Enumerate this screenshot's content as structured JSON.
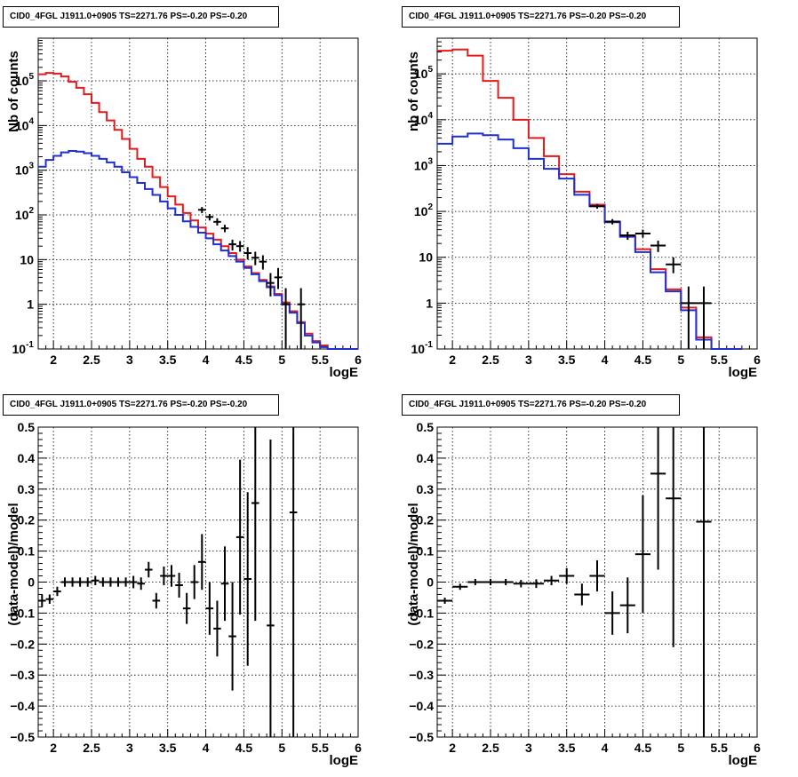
{
  "panels": [
    {
      "title": "CID0_4FGL J1911.0+0905 TS=2271.76 PS=-0.20 PS=-0.20"
    },
    {
      "title": "CID0_4FGL J1911.0+0905 TS=2271.76 PS=-0.20 PS=-0.20"
    },
    {
      "title": "CID0_4FGL J1911.0+0905 TS=2271.76 PS=-0.20 PS=-0.20"
    },
    {
      "title": "CID0_4FGL J1911.0+0905 TS=2271.76 PS=-0.20 PS=-0.20"
    }
  ],
  "colors": {
    "red": "#e41a1c",
    "blue": "#1f2fd0",
    "data": "#000000",
    "grid": "#000000"
  },
  "chart_data": [
    {
      "type": "line",
      "title": "CID0_4FGL J1911.0+0905 TS=2271.76 PS=-0.20 PS=-0.20",
      "xlabel": "logE",
      "ylabel": "Nb of counts",
      "xlim": [
        1.8,
        6.0
      ],
      "ylim": [
        0.1,
        900000
      ],
      "yscale": "log",
      "grid": true,
      "xticks": [
        "2",
        "2.5",
        "3",
        "3.5",
        "4",
        "4.5",
        "5",
        "5.5",
        "6"
      ],
      "yticks": [
        "10^-1",
        "1",
        "10",
        "10^2",
        "10^3",
        "10^4",
        "10^5"
      ],
      "bin_edges": [
        1.8,
        1.9,
        2.0,
        2.1,
        2.2,
        2.3,
        2.4,
        2.5,
        2.6,
        2.7,
        2.8,
        2.9,
        3.0,
        3.1,
        3.2,
        3.3,
        3.4,
        3.5,
        3.6,
        3.7,
        3.8,
        3.9,
        4.0,
        4.1,
        4.2,
        4.3,
        4.4,
        4.5,
        4.6,
        4.7,
        4.8,
        4.9,
        5.0,
        5.1,
        5.2,
        5.3,
        5.4,
        5.5,
        5.6,
        5.7,
        5.8,
        5.9,
        6.0
      ],
      "series": [
        {
          "color": "red",
          "values": [
            140000,
            150000,
            145000,
            125000,
            95000,
            70000,
            50000,
            32000,
            20000,
            13000,
            8000,
            5000,
            3000,
            1800,
            1200,
            700,
            420,
            260,
            170,
            110,
            75,
            52,
            38,
            28,
            20,
            14,
            10,
            7,
            5,
            3.5,
            2.5,
            1.7,
            1.1,
            0.7,
            0.4,
            0.22,
            0.15,
            0.12,
            0.1,
            0.1,
            0.1,
            0.1
          ]
        },
        {
          "color": "blue",
          "values": [
            1200,
            1700,
            2100,
            2500,
            2700,
            2600,
            2400,
            2100,
            1800,
            1500,
            1200,
            900,
            700,
            520,
            380,
            280,
            200,
            140,
            100,
            72,
            54,
            40,
            30,
            22,
            16,
            12,
            9,
            6.5,
            4.7,
            3.3,
            2.4,
            1.6,
            1.0,
            0.65,
            0.38,
            0.2,
            0.14,
            0.11,
            0.1,
            0.1,
            0.1,
            0.1
          ]
        }
      ],
      "data_points": [
        {
          "x": 3.95,
          "y": 130,
          "ylo": 110,
          "yhi": 150
        },
        {
          "x": 4.05,
          "y": 90,
          "ylo": 75,
          "yhi": 105
        },
        {
          "x": 4.15,
          "y": 70,
          "ylo": 58,
          "yhi": 84
        },
        {
          "x": 4.25,
          "y": 50,
          "ylo": 41,
          "yhi": 60
        },
        {
          "x": 4.35,
          "y": 22,
          "ylo": 16,
          "yhi": 28
        },
        {
          "x": 4.45,
          "y": 20,
          "ylo": 15,
          "yhi": 26
        },
        {
          "x": 4.55,
          "y": 14,
          "ylo": 10,
          "yhi": 19
        },
        {
          "x": 4.65,
          "y": 11,
          "ylo": 7.5,
          "yhi": 15
        },
        {
          "x": 4.75,
          "y": 9,
          "ylo": 6,
          "yhi": 12.5
        },
        {
          "x": 4.85,
          "y": 3,
          "ylo": 1.5,
          "yhi": 5
        },
        {
          "x": 4.95,
          "y": 4,
          "ylo": 2.2,
          "yhi": 6.5
        },
        {
          "x": 5.05,
          "y": 1,
          "ylo": 0.1,
          "yhi": 2.3
        },
        {
          "x": 5.25,
          "y": 1,
          "ylo": 0.1,
          "yhi": 2.3
        }
      ]
    },
    {
      "type": "line",
      "title": "CID0_4FGL J1911.0+0905 TS=2271.76 PS=-0.20 PS=-0.20",
      "xlabel": "logE",
      "ylabel": "nb of counts",
      "xlim": [
        1.8,
        6.0
      ],
      "ylim": [
        0.1,
        600000
      ],
      "yscale": "log",
      "grid": true,
      "xticks": [
        "2",
        "2.5",
        "3",
        "3.5",
        "4",
        "4.5",
        "5",
        "5.5",
        "6"
      ],
      "yticks": [
        "10^-1",
        "1",
        "10",
        "10^2",
        "10^3",
        "10^4",
        "10^5"
      ],
      "bin_edges": [
        1.8,
        2.0,
        2.2,
        2.4,
        2.6,
        2.8,
        3.0,
        3.2,
        3.4,
        3.6,
        3.8,
        4.0,
        4.2,
        4.4,
        4.6,
        4.8,
        5.0,
        5.2,
        5.4,
        5.6,
        5.8,
        6.0
      ],
      "series": [
        {
          "color": "red",
          "values": [
            320000,
            340000,
            250000,
            70000,
            30000,
            10000,
            4000,
            1600,
            650,
            270,
            140,
            60,
            30,
            15,
            5.5,
            2,
            0.8,
            0.18,
            0.1,
            0.1
          ]
        },
        {
          "color": "blue",
          "values": [
            3000,
            4300,
            5000,
            4600,
            3700,
            2400,
            1400,
            850,
            520,
            230,
            130,
            58,
            28,
            13,
            4.7,
            1.8,
            0.7,
            0.16,
            0.1,
            0.1
          ]
        }
      ],
      "data_points": [
        {
          "x": 3.9,
          "y": 130,
          "ylo": 115,
          "yhi": 145
        },
        {
          "x": 4.1,
          "y": 60,
          "ylo": 52,
          "yhi": 68
        },
        {
          "x": 4.3,
          "y": 30,
          "ylo": 24,
          "yhi": 36
        },
        {
          "x": 4.5,
          "y": 33,
          "ylo": 27,
          "yhi": 40
        },
        {
          "x": 4.7,
          "y": 18,
          "ylo": 13,
          "yhi": 23
        },
        {
          "x": 4.9,
          "y": 7,
          "ylo": 4.5,
          "yhi": 10
        },
        {
          "x": 5.1,
          "y": 1,
          "ylo": 0.1,
          "yhi": 2.3
        },
        {
          "x": 5.3,
          "y": 1,
          "ylo": 0.1,
          "yhi": 2.3
        }
      ]
    },
    {
      "type": "scatter",
      "title": "CID0_4FGL J1911.0+0905 TS=2271.76 PS=-0.20 PS=-0.20",
      "xlabel": "logE",
      "ylabel": "(data-model)/model",
      "xlim": [
        1.8,
        6.0
      ],
      "ylim": [
        -0.5,
        0.5
      ],
      "grid": true,
      "xticks": [
        "2",
        "2.5",
        "3",
        "3.5",
        "4",
        "4.5",
        "5",
        "5.5",
        "6"
      ],
      "yticks": [
        "-0.5",
        "-0.4",
        "-0.3",
        "-0.2",
        "-0.1",
        "0",
        "0.1",
        "0.2",
        "0.3",
        "0.4",
        "0.5"
      ],
      "xerr": 0.05,
      "points": [
        {
          "x": 1.85,
          "y": -0.06,
          "e": 0.02
        },
        {
          "x": 1.95,
          "y": -0.055,
          "e": 0.015
        },
        {
          "x": 2.05,
          "y": -0.03,
          "e": 0.015
        },
        {
          "x": 2.15,
          "y": 0.0,
          "e": 0.015
        },
        {
          "x": 2.25,
          "y": 0.0,
          "e": 0.015
        },
        {
          "x": 2.35,
          "y": 0.0,
          "e": 0.015
        },
        {
          "x": 2.45,
          "y": 0.0,
          "e": 0.015
        },
        {
          "x": 2.55,
          "y": 0.005,
          "e": 0.015
        },
        {
          "x": 2.65,
          "y": 0.0,
          "e": 0.015
        },
        {
          "x": 2.75,
          "y": 0.0,
          "e": 0.015
        },
        {
          "x": 2.85,
          "y": 0.0,
          "e": 0.015
        },
        {
          "x": 2.95,
          "y": 0.0,
          "e": 0.015
        },
        {
          "x": 3.05,
          "y": 0.0,
          "e": 0.02
        },
        {
          "x": 3.15,
          "y": -0.005,
          "e": 0.02
        },
        {
          "x": 3.25,
          "y": 0.04,
          "e": 0.025
        },
        {
          "x": 3.35,
          "y": -0.06,
          "e": 0.025
        },
        {
          "x": 3.45,
          "y": 0.02,
          "e": 0.03
        },
        {
          "x": 3.55,
          "y": 0.02,
          "e": 0.035
        },
        {
          "x": 3.65,
          "y": -0.01,
          "e": 0.04
        },
        {
          "x": 3.75,
          "y": -0.085,
          "e": 0.05
        },
        {
          "x": 3.85,
          "y": 0.0,
          "e": 0.055
        },
        {
          "x": 3.95,
          "y": 0.065,
          "e": 0.09
        },
        {
          "x": 4.05,
          "y": -0.085,
          "e": 0.085
        },
        {
          "x": 4.15,
          "y": -0.15,
          "e": 0.09
        },
        {
          "x": 4.25,
          "y": -0.005,
          "e": 0.12
        },
        {
          "x": 4.35,
          "y": -0.175,
          "e": 0.175
        },
        {
          "x": 4.45,
          "y": 0.145,
          "e": 0.25
        },
        {
          "x": 4.55,
          "y": 0.01,
          "e": 0.28
        },
        {
          "x": 4.65,
          "y": 0.255,
          "e": 0.38
        },
        {
          "x": 4.85,
          "y": -0.14,
          "e": 0.6
        },
        {
          "x": 5.15,
          "y": 0.225,
          "e": 0.9
        }
      ]
    },
    {
      "type": "scatter",
      "title": "CID0_4FGL J1911.0+0905 TS=2271.76 PS=-0.20 PS=-0.20",
      "xlabel": "logE",
      "ylabel": "(data-model)/model",
      "xlim": [
        1.8,
        6.0
      ],
      "ylim": [
        -0.5,
        0.5
      ],
      "grid": true,
      "xticks": [
        "2",
        "2.5",
        "3",
        "3.5",
        "4",
        "4.5",
        "5",
        "5.5",
        "6"
      ],
      "yticks": [
        "-0.5",
        "-0.4",
        "-0.3",
        "-0.2",
        "-0.1",
        "0",
        "0.1",
        "0.2",
        "0.3",
        "0.4",
        "0.5"
      ],
      "xerr": 0.1,
      "points": [
        {
          "x": 1.9,
          "y": -0.06,
          "e": 0.01
        },
        {
          "x": 2.1,
          "y": -0.015,
          "e": 0.01
        },
        {
          "x": 2.3,
          "y": 0.0,
          "e": 0.01
        },
        {
          "x": 2.5,
          "y": 0.0,
          "e": 0.01
        },
        {
          "x": 2.7,
          "y": 0.0,
          "e": 0.01
        },
        {
          "x": 2.9,
          "y": -0.005,
          "e": 0.012
        },
        {
          "x": 3.1,
          "y": -0.005,
          "e": 0.014
        },
        {
          "x": 3.3,
          "y": 0.005,
          "e": 0.015
        },
        {
          "x": 3.5,
          "y": 0.02,
          "e": 0.025
        },
        {
          "x": 3.7,
          "y": -0.04,
          "e": 0.035
        },
        {
          "x": 3.9,
          "y": 0.02,
          "e": 0.05
        },
        {
          "x": 4.1,
          "y": -0.1,
          "e": 0.07
        },
        {
          "x": 4.3,
          "y": -0.075,
          "e": 0.09
        },
        {
          "x": 4.5,
          "y": 0.09,
          "e": 0.19
        },
        {
          "x": 4.7,
          "y": 0.35,
          "e": 0.31
        },
        {
          "x": 4.9,
          "y": 0.27,
          "e": 0.48
        },
        {
          "x": 5.3,
          "y": 0.195,
          "e": 0.8
        }
      ]
    }
  ]
}
